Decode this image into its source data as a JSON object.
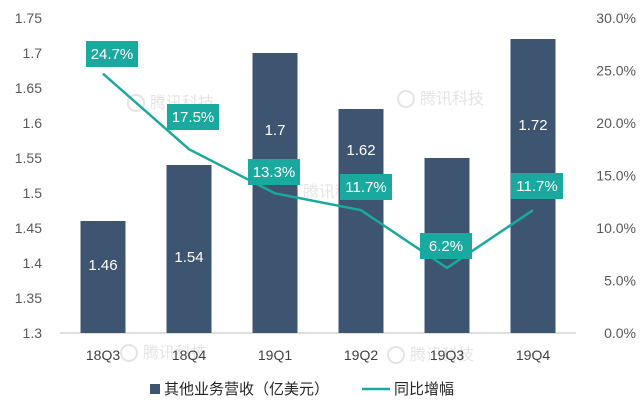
{
  "chart_data": {
    "type": "bar",
    "categories": [
      "18Q3",
      "18Q4",
      "19Q1",
      "19Q2",
      "19Q3",
      "19Q4"
    ],
    "series": [
      {
        "name": "其他业务营收（亿美元）",
        "type": "bar",
        "axis": "left",
        "values": [
          1.46,
          1.54,
          1.7,
          1.62,
          1.55,
          1.72
        ],
        "labels": [
          "1.46",
          "1.54",
          "1.7",
          "1.62",
          "1.55",
          "1.72"
        ],
        "color": "#3d5570"
      },
      {
        "name": "同比增幅",
        "type": "line",
        "axis": "right",
        "values": [
          24.7,
          17.5,
          13.3,
          11.7,
          6.2,
          11.7
        ],
        "labels": [
          "24.7%",
          "17.5%",
          "13.3%",
          "11.7%",
          "6.2%",
          "11.7%"
        ],
        "color": "#1aa99f"
      }
    ],
    "left_axis": {
      "min": 1.3,
      "max": 1.75,
      "ticks": [
        "1.3",
        "1.35",
        "1.4",
        "1.45",
        "1.5",
        "1.55",
        "1.6",
        "1.65",
        "1.7",
        "1.75"
      ]
    },
    "right_axis": {
      "min": 0,
      "max": 30,
      "ticks": [
        "0.0%",
        "5.0%",
        "10.0%",
        "15.0%",
        "20.0%",
        "25.0%",
        "30.0%"
      ]
    },
    "legend_position": "bottom",
    "grid": false
  },
  "watermark": {
    "text": "腾讯科技"
  }
}
